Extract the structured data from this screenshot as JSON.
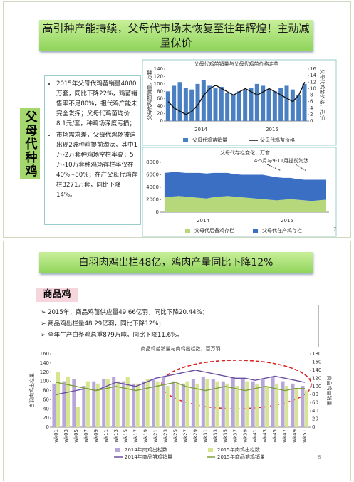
{
  "slide1": {
    "title": "高引种产能持续，父母代市场未恢复至往年辉煌！主动减量保价",
    "side_label": "父母代种鸡",
    "bullets": [
      "2015年父母代鸡苗销量4080万套，同比下降22%，鸡苗销售率不足80%，祖代鸡产能未完全发挥；父母代鸡苗均价8.1元/套，种鸡场深度亏损；",
      "市场需求差，父母代鸡场被迫出现2波种鸡提前淘汰，其中1万-2万套种鸡场空栏率高；5万-10万套种鸡场存栏率仅在40%~80%；在产父母代鸡存栏3271万套，同比下降14%。"
    ],
    "page": "7"
  },
  "slide2": {
    "title": "白羽肉鸡出栏48亿，鸡肉产量同比下降12%",
    "section": "商品鸡",
    "bullets": [
      "2015年，商品鸡苗供应量49.66亿羽，同比下降20.44%；",
      "商品鸡出栏量48.29亿羽，同比下降12%；",
      "全年生产白条鸡总重879万吨，同比下降11.6%。"
    ],
    "page": "8"
  },
  "chart_data": [
    {
      "type": "bar",
      "title": "父母代鸡苗销量与父母代鸡苗价格走势",
      "y_label": "父母代鸡苗销量，万套",
      "y2_label": "父母代鸡苗价格，元/只",
      "categories": [
        null,
        null,
        null,
        null,
        null,
        null,
        null,
        null,
        null,
        null,
        null,
        null,
        null,
        null,
        null,
        null,
        null,
        null,
        null,
        null,
        null,
        null,
        null,
        null
      ],
      "x_groups": [
        "2014",
        "2015"
      ],
      "ylim": [
        0,
        140
      ],
      "yticks": [
        0,
        20,
        40,
        60,
        80,
        100,
        120,
        140
      ],
      "y2lim": [
        0,
        16
      ],
      "y2ticks": [
        0,
        2,
        4,
        6,
        8,
        10,
        12,
        14,
        16
      ],
      "grid": false,
      "series": [
        {
          "name": "父母代鸡苗销量",
          "type": "bar",
          "color": "#4a7fc1",
          "values": [
            80,
            95,
            105,
            90,
            85,
            100,
            110,
            95,
            88,
            92,
            75,
            70,
            80,
            85,
            90,
            100,
            95,
            85,
            80,
            90,
            95,
            85,
            70,
            100
          ]
        },
        {
          "name": "父母代鸡苗价格",
          "type": "line",
          "axis": "y2",
          "color": "#111111",
          "values": [
            6,
            4,
            3,
            2,
            3,
            5,
            8,
            10,
            11,
            10,
            9,
            8,
            9,
            10,
            9,
            8,
            9,
            10,
            9,
            8,
            7,
            6,
            8,
            12
          ]
        }
      ]
    },
    {
      "type": "area",
      "title": "父母代存栏变化，万套",
      "annotation": "4-5月与9-11月提前淘汰",
      "categories": [
        null,
        null,
        null,
        null,
        null,
        null,
        null,
        null,
        null,
        null,
        null,
        null,
        null,
        null,
        null,
        null,
        null,
        null,
        null,
        null,
        null,
        null,
        null,
        null
      ],
      "x_groups": [
        "2014",
        "2015"
      ],
      "ylim": [
        0,
        8000
      ],
      "yticks": [
        0,
        2000,
        4000,
        6000,
        8000
      ],
      "grid": false,
      "stacked": true,
      "series": [
        {
          "name": "父母代后备鸡存栏",
          "type": "area",
          "color": "#b6d77a",
          "values": [
            2400,
            2500,
            2600,
            2500,
            2400,
            2300,
            2200,
            2400,
            2500,
            2600,
            2500,
            2400,
            2300,
            2200,
            2100,
            2000,
            1900,
            2000,
            2100,
            2000,
            1900,
            1800,
            1900,
            2000
          ]
        },
        {
          "name": "父母代在产鸡存栏",
          "type": "area",
          "color": "#3a6fc4",
          "values": [
            3900,
            3900,
            3800,
            3800,
            3900,
            4000,
            4000,
            3900,
            3800,
            3700,
            3600,
            3600,
            3700,
            3800,
            3900,
            3800,
            3700,
            3500,
            3400,
            3300,
            3300,
            3400,
            3300,
            3200
          ]
        }
      ]
    },
    {
      "type": "bar",
      "title": "商品鸡苗销量与肉鸡出栏数，百万羽",
      "y_label": "白羽肉鸡出栏量",
      "y2_label": "商品鸡苗销量",
      "categories": [
        "wk01",
        "wk03",
        "wk05",
        "wk07",
        "wk09",
        "wk11",
        "wk13",
        "wk15",
        "wk17",
        "wk19",
        "wk21",
        "wk23",
        "wk25",
        "wk27",
        "wk29",
        "wk31",
        "wk33",
        "wk35",
        "wk37",
        "wk39",
        "wk41",
        "wk43",
        "wk45",
        "wk47",
        "wk49",
        "wk51"
      ],
      "ylim": [
        0,
        160
      ],
      "yticks": [
        0,
        20,
        40,
        60,
        80,
        100,
        120,
        140,
        160
      ],
      "y2lim": [
        0,
        180
      ],
      "y2ticks": [
        0,
        20,
        40,
        60,
        80,
        100,
        120,
        140,
        160,
        180
      ],
      "grid": false,
      "series": [
        {
          "name": "2014年肉鸡出栏数",
          "type": "bar",
          "color": "#b7a6d9",
          "values": [
            95,
            100,
            105,
            90,
            100,
            105,
            110,
            100,
            95,
            100,
            105,
            110,
            100,
            95,
            105,
            110,
            105,
            100,
            110,
            105,
            100,
            105,
            110,
            100,
            95,
            90
          ]
        },
        {
          "name": "2015年肉鸡出栏数",
          "type": "bar",
          "color": "#d6e58e",
          "values": [
            120,
            110,
            45,
            100,
            95,
            105,
            100,
            110,
            95,
            105,
            100,
            90,
            95,
            100,
            95,
            105,
            100,
            95,
            90,
            100,
            95,
            90,
            95,
            90,
            85,
            80
          ]
        },
        {
          "name": "2014年商品雏鸡销量",
          "type": "line",
          "axis": "y2",
          "color": "#6a4fa0",
          "values": [
            80,
            85,
            90,
            95,
            90,
            100,
            110,
            105,
            100,
            110,
            120,
            125,
            130,
            135,
            140,
            135,
            130,
            125,
            120,
            120,
            115,
            120,
            125,
            120,
            115,
            110
          ]
        },
        {
          "name": "2015年商品雏鸡销量",
          "type": "line",
          "axis": "y2",
          "color": "#7fa03a",
          "values": [
            110,
            105,
            100,
            95,
            90,
            95,
            100,
            95,
            90,
            95,
            100,
            105,
            110,
            100,
            95,
            90,
            95,
            100,
            95,
            90,
            95,
            100,
            95,
            90,
            95,
            95
          ]
        }
      ]
    }
  ]
}
